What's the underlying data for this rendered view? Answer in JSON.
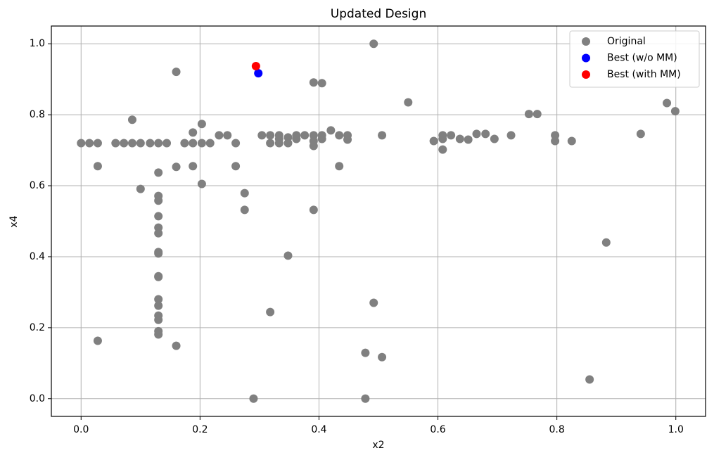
{
  "chart_data": {
    "type": "scatter",
    "title": "Updated Design",
    "x_label": "x2",
    "y_label": "x4",
    "xlim": [
      -0.05,
      1.05
    ],
    "ylim": [
      -0.05,
      1.05
    ],
    "xticks": [
      {
        "value": 0,
        "label": "0.0"
      },
      0.2,
      0.4,
      0.6,
      0.8,
      {
        "value": 1,
        "label": "1.0"
      }
    ],
    "yticks": [
      {
        "value": 0,
        "label": "0.0"
      },
      0.2,
      0.4,
      0.6,
      0.8,
      {
        "value": 1,
        "label": "1.0"
      }
    ],
    "grid": true,
    "legend": "upper right",
    "series": [
      {
        "name": "Original",
        "color": "#808080",
        "x": [
          0.0,
          0.014,
          0.028,
          0.028,
          0.028,
          0.058,
          0.072,
          0.086,
          0.086,
          0.1,
          0.1,
          0.116,
          0.13,
          0.144,
          0.13,
          0.13,
          0.13,
          0.13,
          0.13,
          0.13,
          0.13,
          0.13,
          0.13,
          0.13,
          0.13,
          0.13,
          0.13,
          0.13,
          0.13,
          0.13,
          0.16,
          0.16,
          0.16,
          0.174,
          0.188,
          0.188,
          0.188,
          0.203,
          0.203,
          0.203,
          0.217,
          0.232,
          0.246,
          0.26,
          0.26,
          0.275,
          0.275,
          0.29,
          0.304,
          0.318,
          0.318,
          0.318,
          0.333,
          0.333,
          0.333,
          0.348,
          0.348,
          0.348,
          0.362,
          0.362,
          0.376,
          0.391,
          0.391,
          0.391,
          0.391,
          0.391,
          0.405,
          0.405,
          0.405,
          0.42,
          0.434,
          0.434,
          0.448,
          0.448,
          0.478,
          0.478,
          0.492,
          0.492,
          0.506,
          0.506,
          0.55,
          0.593,
          0.608,
          0.608,
          0.608,
          0.622,
          0.637,
          0.651,
          0.665,
          0.68,
          0.695,
          0.723,
          0.753,
          0.767,
          0.797,
          0.797,
          0.825,
          0.855,
          0.883,
          0.941,
          0.985,
          0.999
        ],
        "y": [
          0.72,
          0.72,
          0.72,
          0.655,
          0.163,
          0.72,
          0.72,
          0.786,
          0.72,
          0.72,
          0.591,
          0.72,
          0.72,
          0.72,
          0.637,
          0.571,
          0.558,
          0.514,
          0.482,
          0.466,
          0.413,
          0.409,
          0.345,
          0.343,
          0.28,
          0.262,
          0.234,
          0.222,
          0.19,
          0.181,
          0.921,
          0.653,
          0.149,
          0.72,
          0.75,
          0.72,
          0.655,
          0.774,
          0.72,
          0.605,
          0.72,
          0.742,
          0.742,
          0.72,
          0.655,
          0.579,
          0.532,
          0.0,
          0.742,
          0.742,
          0.72,
          0.244,
          0.742,
          0.732,
          0.72,
          0.736,
          0.72,
          0.403,
          0.742,
          0.732,
          0.742,
          0.742,
          0.726,
          0.712,
          0.891,
          0.532,
          0.889,
          0.742,
          0.732,
          0.756,
          0.742,
          0.655,
          0.742,
          0.73,
          0.129,
          0.0,
          1.0,
          0.27,
          0.742,
          0.117,
          0.835,
          0.726,
          0.742,
          0.732,
          0.702,
          0.742,
          0.732,
          0.73,
          0.746,
          0.746,
          0.732,
          0.742,
          0.802,
          0.802,
          0.742,
          0.726,
          0.726,
          0.054,
          0.44,
          0.746,
          0.833,
          0.81
        ]
      },
      {
        "name": "Best (w/o MM)",
        "color": "#0000ff",
        "x": [
          0.298
        ],
        "y": [
          0.917
        ]
      },
      {
        "name": "Best (with MM)",
        "color": "#ff0000",
        "x": [
          0.294
        ],
        "y": [
          0.937
        ]
      }
    ]
  }
}
